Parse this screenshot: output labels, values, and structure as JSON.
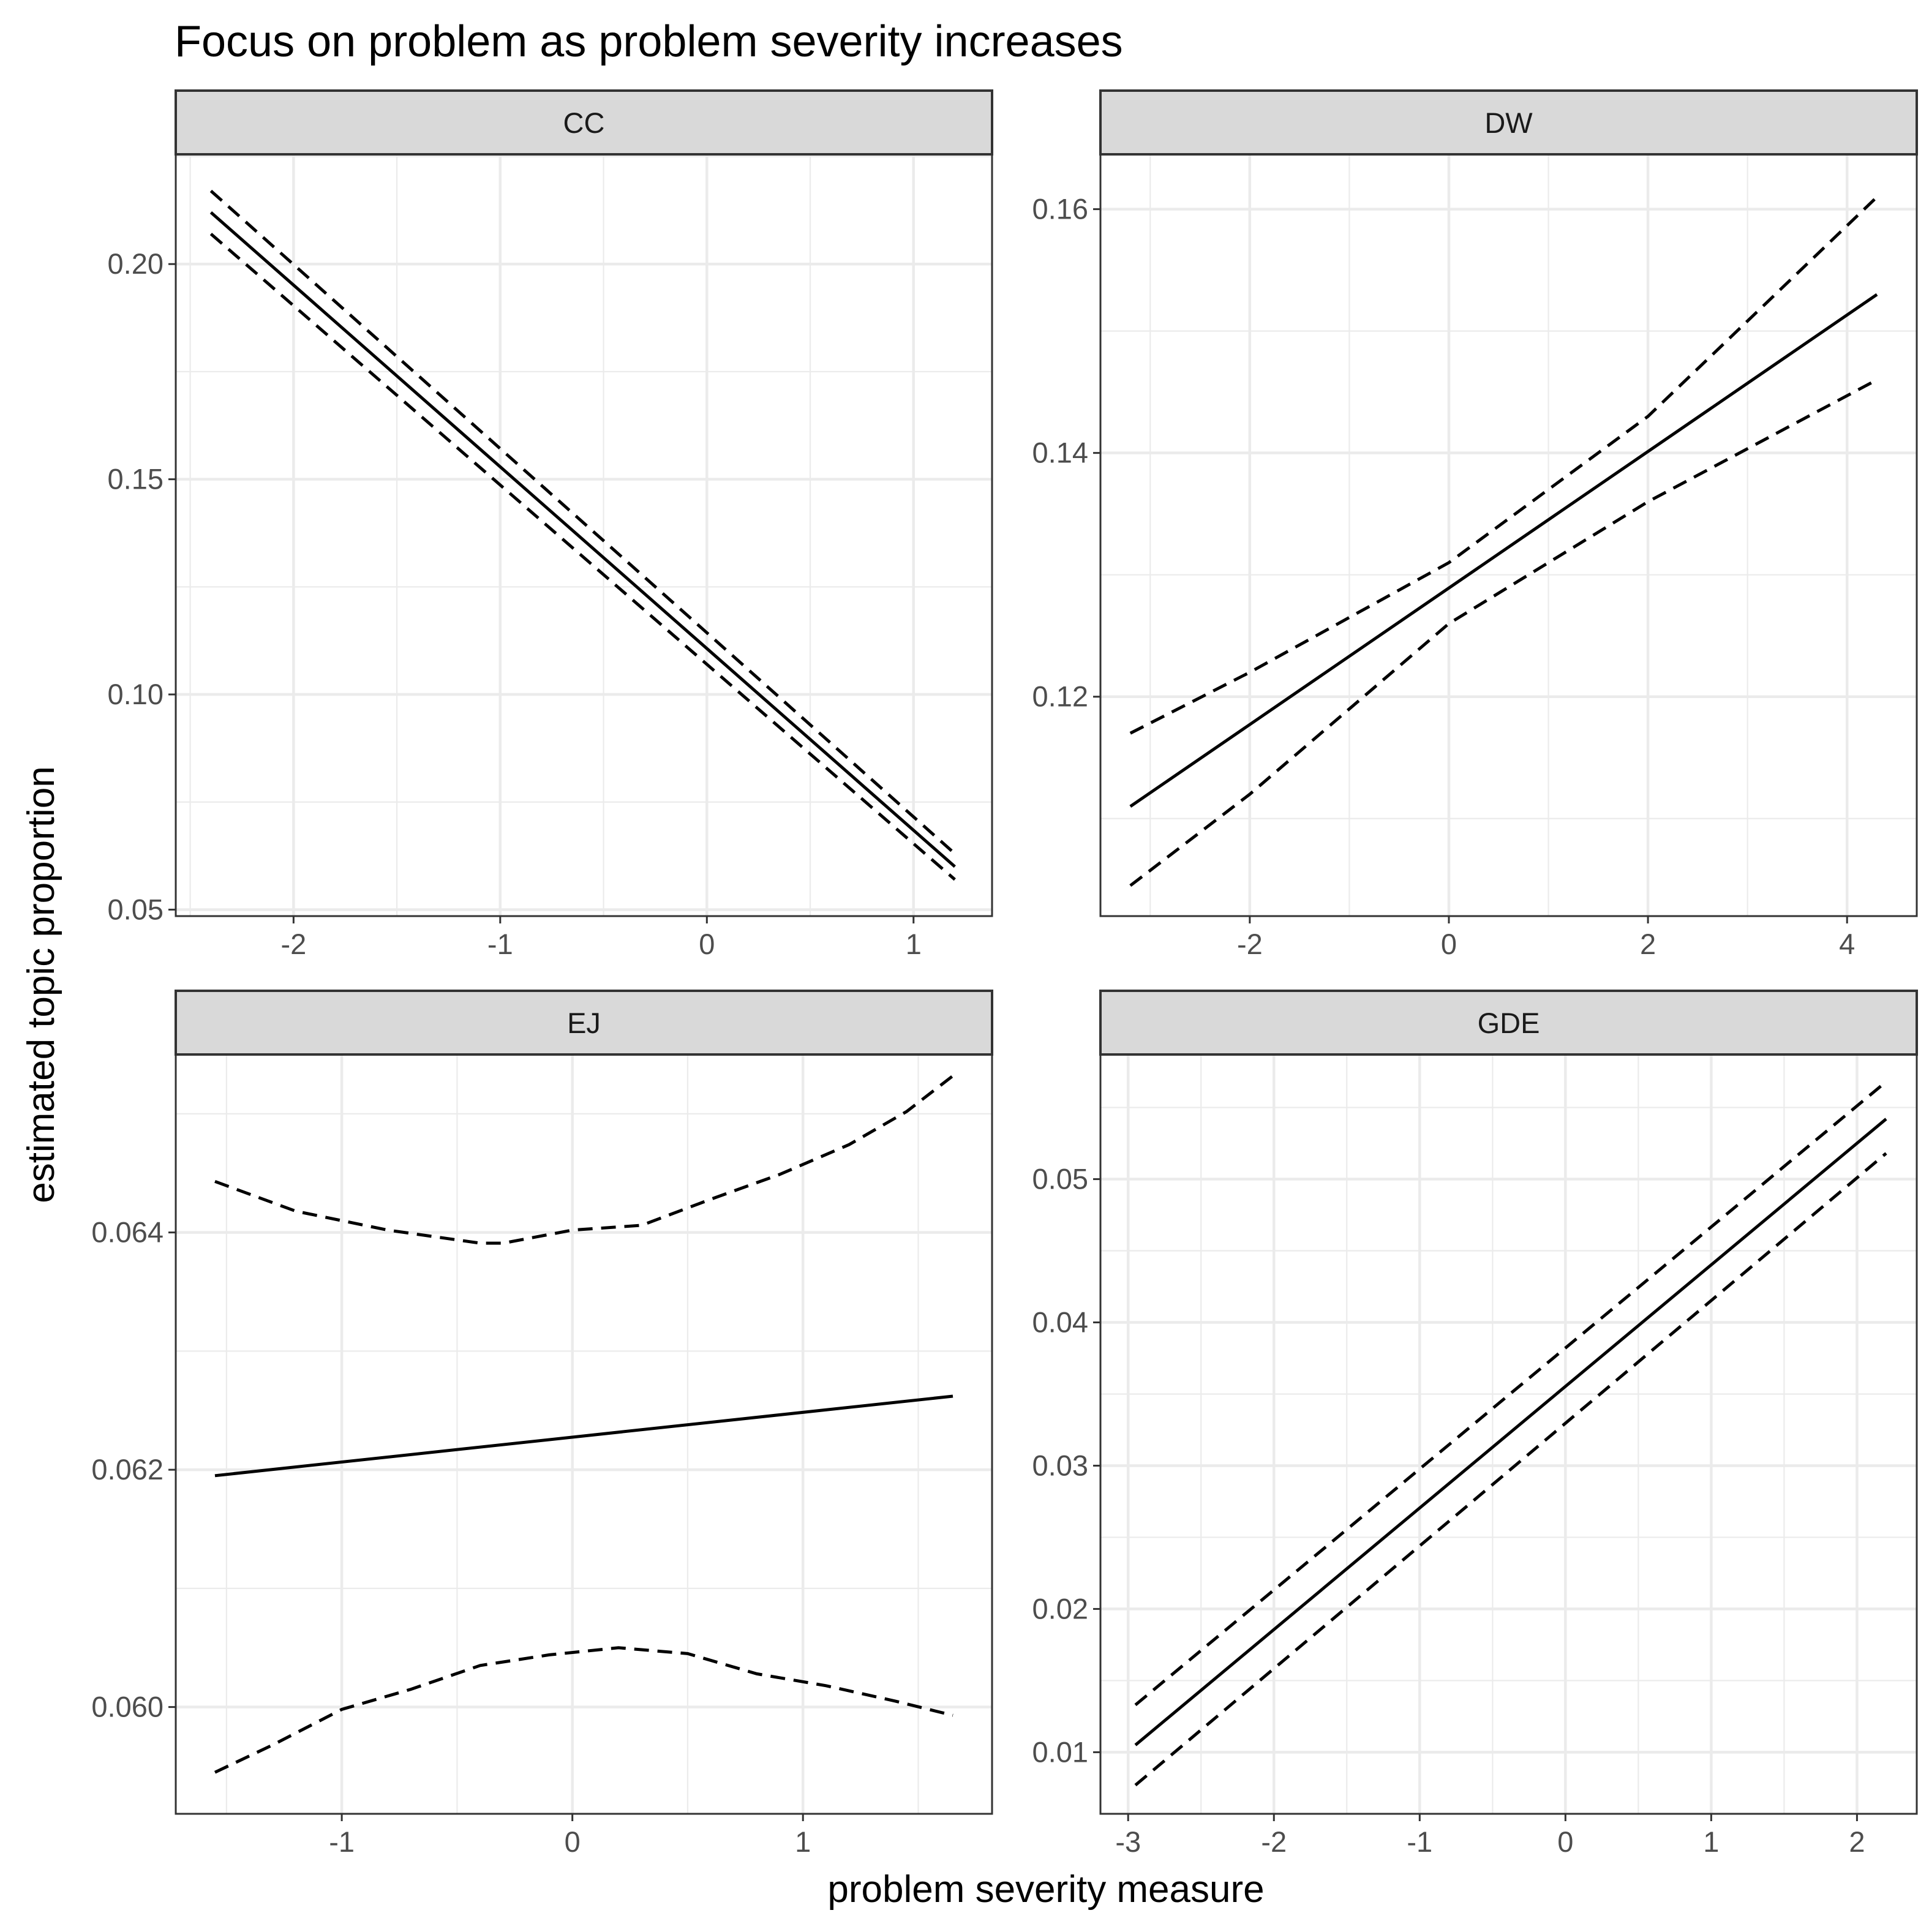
{
  "chart_data": {
    "type": "line",
    "title": "Focus on problem as problem severity increases",
    "xlabel": "problem severity measure",
    "ylabel": "estimated topic proportion",
    "grid": true,
    "legend": "none",
    "panels": [
      {
        "name": "CC",
        "xlim": [
          -2.57,
          1.38
        ],
        "ylim": [
          0.0485,
          0.2255
        ],
        "xticks": [
          -2,
          -1,
          0,
          1
        ],
        "xtick_labels": [
          "-2",
          "-1",
          "0",
          "1"
        ],
        "yticks": [
          0.05,
          0.1,
          0.15,
          0.2
        ],
        "ytick_labels": [
          "0.05",
          "0.10",
          "0.15",
          "0.20"
        ],
        "series": [
          {
            "style": "solid",
            "x": [
              -2.4,
              1.2
            ],
            "y": [
              0.212,
              0.06
            ]
          },
          {
            "style": "dashed",
            "x": [
              -2.4,
              1.2
            ],
            "y": [
              0.217,
              0.063
            ]
          },
          {
            "style": "dashed",
            "x": [
              -2.4,
              1.2
            ],
            "y": [
              0.207,
              0.057
            ]
          }
        ]
      },
      {
        "name": "DW",
        "xlim": [
          -3.5,
          4.7
        ],
        "ylim": [
          0.102,
          0.1645
        ],
        "xticks": [
          -2,
          0,
          2,
          4
        ],
        "xtick_labels": [
          "-2",
          "0",
          "2",
          "4"
        ],
        "yticks": [
          0.12,
          0.14,
          0.16
        ],
        "ytick_labels": [
          "0.12",
          "0.14",
          "0.16"
        ],
        "series": [
          {
            "style": "solid",
            "x": [
              -3.2,
              4.3
            ],
            "y": [
              0.111,
              0.153
            ]
          },
          {
            "style": "dashed",
            "x": [
              -3.2,
              -2.0,
              0.0,
              2.0,
              4.3
            ],
            "y": [
              0.117,
              0.122,
              0.131,
              0.143,
              0.161
            ]
          },
          {
            "style": "dashed",
            "x": [
              -3.2,
              -2.0,
              0.0,
              2.0,
              4.3
            ],
            "y": [
              0.1045,
              0.112,
              0.126,
              0.136,
              0.146
            ]
          }
        ]
      },
      {
        "name": "EJ",
        "xlim": [
          -1.72,
          1.82
        ],
        "ylim": [
          0.0591,
          0.0655
        ],
        "xticks": [
          -1,
          0,
          1
        ],
        "xtick_labels": [
          "-1",
          "0",
          "1"
        ],
        "yticks": [
          0.06,
          0.062,
          0.064
        ],
        "ytick_labels": [
          "0.060",
          "0.062",
          "0.064"
        ],
        "series": [
          {
            "style": "solid",
            "x": [
              -1.55,
              1.65
            ],
            "y": [
              0.06195,
              0.06262
            ]
          },
          {
            "style": "dashed",
            "x": [
              -1.55,
              -1.2,
              -0.8,
              -0.4,
              -0.3,
              0.0,
              0.3,
              0.6,
              0.9,
              1.2,
              1.45,
              1.65
            ],
            "y": [
              0.06443,
              0.06418,
              0.06402,
              0.06391,
              0.06391,
              0.06402,
              0.06406,
              0.06428,
              0.06449,
              0.06474,
              0.06502,
              0.06532
            ]
          },
          {
            "style": "dashed",
            "x": [
              -1.55,
              -1.3,
              -1.0,
              -0.7,
              -0.4,
              -0.1,
              0.2,
              0.5,
              0.8,
              1.1,
              1.4,
              1.65
            ],
            "y": [
              0.05945,
              0.05968,
              0.05998,
              0.06015,
              0.06035,
              0.06044,
              0.0605,
              0.06045,
              0.06028,
              0.06018,
              0.06005,
              0.05993
            ]
          }
        ]
      },
      {
        "name": "GDE",
        "xlim": [
          -3.19,
          2.41
        ],
        "ylim": [
          0.0057,
          0.0587
        ],
        "xticks": [
          -3,
          -2,
          -1,
          0,
          1,
          2
        ],
        "xtick_labels": [
          "-3",
          "-2",
          "-1",
          "0",
          "1",
          "2"
        ],
        "yticks": [
          0.01,
          0.02,
          0.03,
          0.04,
          0.05
        ],
        "ytick_labels": [
          "0.01",
          "0.02",
          "0.03",
          "0.04",
          "0.05"
        ],
        "series": [
          {
            "style": "solid",
            "x": [
              -2.95,
              2.2
            ],
            "y": [
              0.0105,
              0.0542
            ]
          },
          {
            "style": "dashed",
            "x": [
              -2.95,
              2.2
            ],
            "y": [
              0.0133,
              0.0568
            ]
          },
          {
            "style": "dashed",
            "x": [
              -2.95,
              2.2
            ],
            "y": [
              0.0077,
              0.0518
            ]
          }
        ]
      }
    ]
  }
}
